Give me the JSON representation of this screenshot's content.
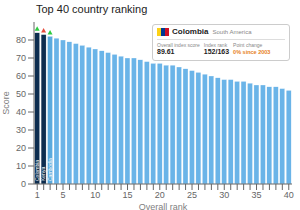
{
  "chart_data": {
    "type": "bar",
    "title": "Top 40 country ranking",
    "xlabel": "Overall rank",
    "ylabel": "Score",
    "categories": [
      "1",
      null,
      null,
      null,
      "5",
      null,
      null,
      null,
      null,
      "10",
      null,
      null,
      null,
      null,
      "15",
      null,
      null,
      null,
      null,
      "20",
      null,
      null,
      null,
      null,
      "25",
      null,
      null,
      null,
      null,
      "30",
      null,
      null,
      null,
      null,
      "35",
      null,
      null,
      null,
      null,
      "40"
    ],
    "values": [
      84,
      83,
      82,
      81,
      80,
      79,
      78,
      77,
      76,
      75,
      74,
      73,
      72,
      71,
      70,
      70,
      69,
      68,
      67,
      67,
      66,
      66,
      65,
      64,
      63,
      62,
      61,
      60,
      59,
      58,
      58,
      57,
      57,
      56,
      55,
      55,
      54,
      54,
      53,
      52
    ],
    "colors": [
      "#0d2d4f",
      "#0d2d4f",
      "#5aaade",
      "#6ab4e8",
      "#6ab4e8",
      "#6ab4e8",
      "#6ab4e8",
      "#6ab4e8",
      "#6ab4e8",
      "#6ab4e8",
      "#6ab4e8",
      "#6ab4e8",
      "#6ab4e8",
      "#6ab4e8",
      "#6ab4e8",
      "#6ab4e8",
      "#6ab4e8",
      "#6ab4e8",
      "#6ab4e8",
      "#6ab4e8",
      "#6ab4e8",
      "#6ab4e8",
      "#6ab4e8",
      "#6ab4e8",
      "#6ab4e8",
      "#6ab4e8",
      "#6ab4e8",
      "#6ab4e8",
      "#6ab4e8",
      "#6ab4e8",
      "#6ab4e8",
      "#6ab4e8",
      "#6ab4e8",
      "#6ab4e8",
      "#6ab4e8",
      "#6ab4e8",
      "#6ab4e8",
      "#6ab4e8",
      "#6ab4e8",
      "#6ab4e8"
    ],
    "bar_labels": [
      "Colombia",
      "Kenya",
      "Cambodia",
      null,
      null,
      null,
      null,
      null,
      null,
      null,
      null,
      null,
      null,
      null,
      null,
      null,
      null,
      null,
      null,
      null,
      null,
      null,
      null,
      null,
      null,
      null,
      null,
      null,
      null,
      null,
      null,
      null,
      null,
      null,
      null,
      null,
      null,
      null,
      null,
      null
    ],
    "marker_colors": [
      "#2ecc40",
      "#e74c3c",
      "#2ecc40",
      null,
      null,
      null,
      null,
      null,
      null,
      null,
      null,
      null,
      null,
      null,
      null,
      null,
      null,
      null,
      null,
      null,
      null,
      null,
      null,
      null,
      null,
      null,
      null,
      null,
      null,
      null,
      null,
      null,
      null,
      null,
      null,
      null,
      null,
      null,
      null,
      null
    ],
    "ylim": [
      0,
      90
    ],
    "yticks": [
      0,
      10,
      20,
      30,
      40,
      50,
      60,
      70,
      80
    ],
    "grid": false,
    "tooltip": {
      "country": "Colombia",
      "region": "South America",
      "flag_colors": [
        "#fcd116",
        "#003893",
        "#ce1126"
      ],
      "fields": [
        {
          "label": "Overall index score",
          "value": "89.61"
        },
        {
          "label": "Index rank",
          "value": "152/163"
        },
        {
          "label": "Point change",
          "value": "0% since 2003",
          "color": "#e67e22"
        }
      ]
    }
  }
}
